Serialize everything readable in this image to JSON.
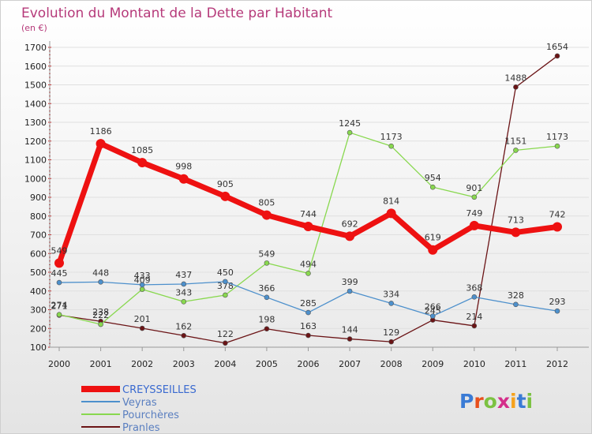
{
  "chart_data": {
    "type": "line",
    "title": "Evolution du Montant de la Dette par Habitant",
    "subtitle": "(en €)",
    "xlabel": "",
    "ylabel": "",
    "categories": [
      "2000",
      "2001",
      "2002",
      "2003",
      "2004",
      "2005",
      "2006",
      "2007",
      "2008",
      "2009",
      "2010",
      "2011",
      "2012"
    ],
    "ylim": [
      100,
      1700
    ],
    "yticks": [
      100,
      200,
      300,
      400,
      500,
      600,
      700,
      800,
      900,
      1000,
      1100,
      1200,
      1300,
      1400,
      1500,
      1600,
      1700
    ],
    "grid": "horizontal",
    "legend_position": "bottom-left",
    "series": [
      {
        "name": "Pranles",
        "color": "#6b1416",
        "values": [
          271,
          238,
          201,
          162,
          122,
          198,
          163,
          144,
          129,
          245,
          214,
          1488,
          1654
        ],
        "labels": [
          "271",
          "238",
          "201",
          "162",
          "122",
          "198",
          "163",
          "144",
          "129",
          "245",
          "214",
          "1488",
          "1654"
        ]
      },
      {
        "name": "Pourchères",
        "color": "#88d84e",
        "values": [
          274,
          222,
          409,
          343,
          378,
          549,
          494,
          1245,
          1173,
          954,
          901,
          1151,
          1173
        ],
        "labels": [
          "274",
          "222",
          "409",
          "343",
          "378",
          "549",
          "494",
          "1245",
          "1173",
          "954",
          "901",
          "1151",
          "1173"
        ]
      },
      {
        "name": "Veyras",
        "color": "#4d90cc",
        "values": [
          445,
          448,
          433,
          437,
          450,
          366,
          285,
          399,
          334,
          266,
          368,
          328,
          293
        ],
        "labels": [
          "445",
          "448",
          "433",
          "437",
          "450",
          "366",
          "285",
          "399",
          "334",
          "266",
          "368",
          "328",
          "293"
        ]
      },
      {
        "name": "CREYSSEILLES",
        "color": "#ee1111",
        "values": [
          549,
          1186,
          1085,
          998,
          905,
          805,
          744,
          692,
          814,
          619,
          749,
          713,
          742
        ],
        "labels": [
          "549",
          "1186",
          "1085",
          "998",
          "905",
          "805",
          "744",
          "692",
          "814",
          "619",
          "749",
          "713",
          "742"
        ]
      }
    ],
    "legend": [
      "CREYSSEILLES",
      "Veyras",
      "Pourchères",
      "Pranles"
    ]
  },
  "logo": {
    "text": "Proxiti",
    "colors": [
      "#3a7bd5",
      "#e8501c",
      "#7cc242",
      "#d42e8a",
      "#f6a21c",
      "#3a7bd5",
      "#7cc242"
    ]
  }
}
